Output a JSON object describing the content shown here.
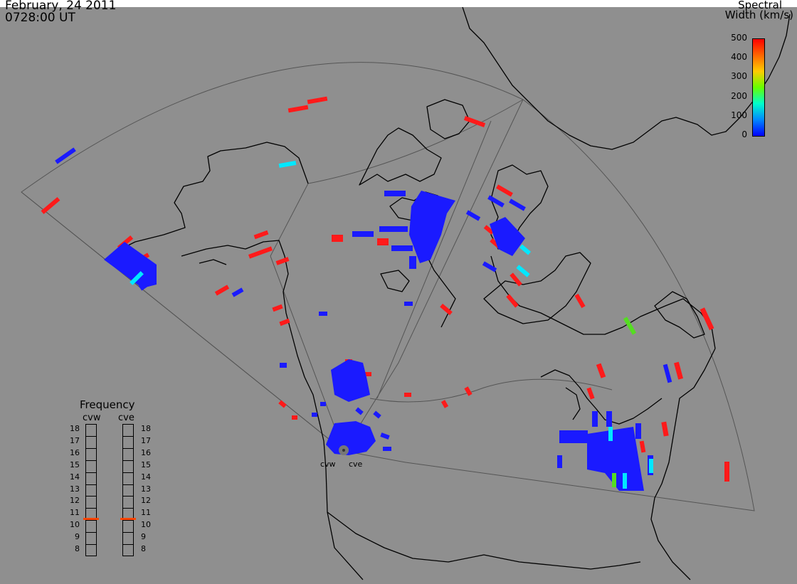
{
  "header": {
    "date": "February, 24 2011",
    "time": "0728:00 UT"
  },
  "colorbar": {
    "title_line1": "Spectral",
    "title_line2": "Width (km/s)",
    "ticks": [
      "500",
      "400",
      "300",
      "200",
      "100",
      "0"
    ],
    "colors": [
      "#ff0000",
      "#ff6600",
      "#ffcc00",
      "#66ff00",
      "#00ffcc",
      "#0088ff",
      "#0000ff"
    ]
  },
  "frequency": {
    "title": "Frequency",
    "radar_left": "cvw",
    "radar_right": "cve",
    "levels": [
      "18",
      "17",
      "16",
      "15",
      "14",
      "13",
      "12",
      "11",
      "10",
      "9",
      "8"
    ],
    "current_value": 11,
    "indicator_color": "#ff4400"
  },
  "radar_site": {
    "label_left": "cvw",
    "label_right": "cve"
  },
  "colors": {
    "background": "#8f8f8f",
    "coast": "#000000",
    "fov": "#444444",
    "blue": "#1a1aff",
    "red": "#ff1a1a",
    "cyan": "#00e8ff",
    "green": "#55dd22"
  }
}
